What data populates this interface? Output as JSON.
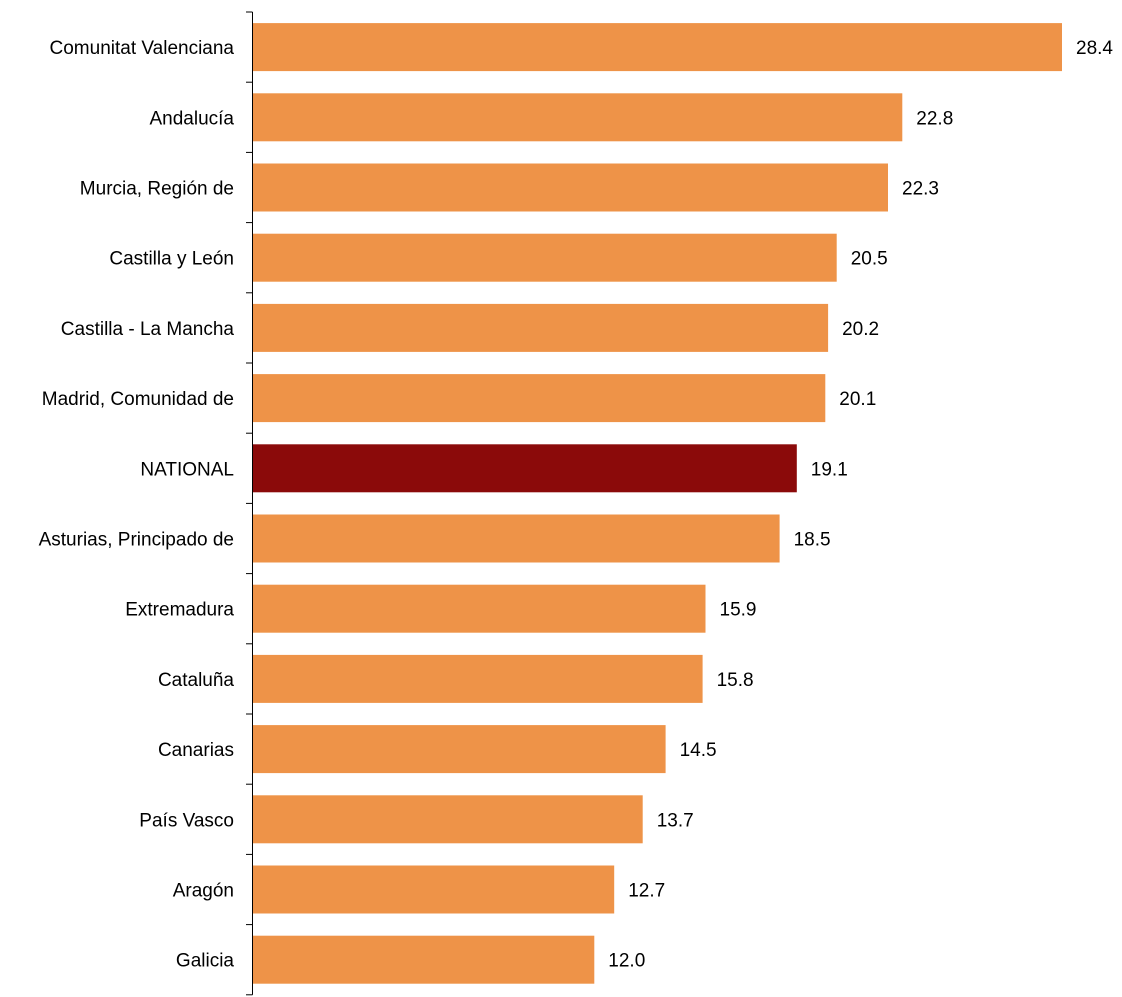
{
  "chart_data": {
    "type": "bar",
    "orientation": "horizontal",
    "categories": [
      "Comunitat Valenciana",
      "Andalucía",
      "Murcia, Región de",
      "Castilla y León",
      "Castilla - La Mancha",
      "Madrid, Comunidad de",
      "NATIONAL",
      "Asturias, Principado de",
      "Extremadura",
      "Cataluña",
      "Canarias",
      "País Vasco",
      "Aragón",
      "Galicia"
    ],
    "values": [
      28.4,
      22.8,
      22.3,
      20.5,
      20.2,
      20.1,
      19.1,
      18.5,
      15.9,
      15.8,
      14.5,
      13.7,
      12.7,
      12.0
    ],
    "value_labels": [
      "28.4",
      "22.8",
      "22.3",
      "20.5",
      "20.2",
      "20.1",
      "19.1",
      "18.5",
      "15.9",
      "15.8",
      "14.5",
      "13.7",
      "12.7",
      "12.0"
    ],
    "highlight_category": "NATIONAL",
    "xlim": [
      0,
      28.4
    ],
    "grid": false,
    "legend": "none",
    "colors": {
      "bar": "#EE9348",
      "highlight": "#8B0A0A"
    }
  }
}
